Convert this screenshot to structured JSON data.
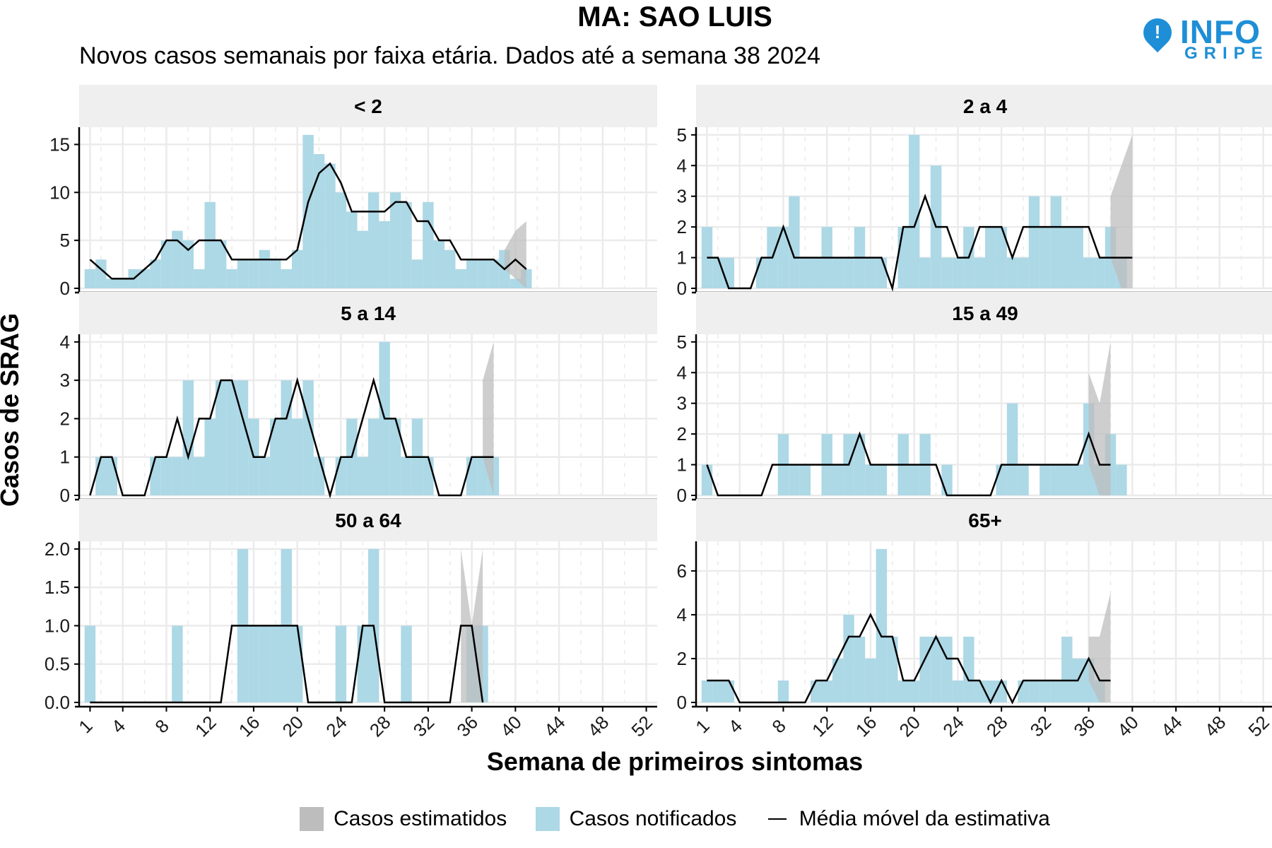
{
  "title": "MA: SAO LUIS",
  "subtitle": "Novos casos semanais por faixa etária. Dados até a semana 38 2024",
  "logo": {
    "pin_mark": "!",
    "word1": "INFO",
    "word2": "GRIPE"
  },
  "colors": {
    "notified": "#add8e6",
    "estimated": "#bdbdbd",
    "line": "#000000",
    "strip": "#efefef",
    "grid": "#ebebeb"
  },
  "chart_data": {
    "type": "bar",
    "xlabel": "Semana de primeiros sintomas",
    "ylabel": "Casos de SRAG",
    "x_ticks": [
      1,
      4,
      8,
      12,
      16,
      20,
      24,
      28,
      32,
      36,
      40,
      44,
      48,
      52
    ],
    "xlim": [
      0,
      53
    ],
    "legend": {
      "position": "bottom",
      "items": [
        "Casos estimatidos",
        "Casos notificados",
        "Média móvel da estimativa"
      ]
    },
    "panels": [
      {
        "name": "< 2",
        "ylim": [
          0,
          16.8
        ],
        "y_ticks": [
          0,
          5,
          10,
          15
        ],
        "notified": [
          2,
          3,
          1,
          1,
          2,
          2,
          3,
          5,
          6,
          5,
          2,
          9,
          5,
          2,
          3,
          3,
          4,
          3,
          2,
          4,
          16,
          14,
          13,
          10,
          8,
          6,
          10,
          7,
          10,
          9,
          3,
          9,
          5,
          4,
          2,
          3,
          3,
          3,
          4,
          1,
          2
        ],
        "moving_avg": [
          3,
          2,
          1,
          1,
          1,
          2,
          3,
          5,
          5,
          4,
          5,
          5,
          5,
          3,
          3,
          3,
          3,
          3,
          3,
          4,
          9,
          12,
          13,
          11,
          8,
          8,
          8,
          8,
          9,
          9,
          7,
          7,
          5,
          5,
          3,
          3,
          3,
          3,
          2,
          3,
          2
        ],
        "estimate_band": [
          [
            2,
            4
          ],
          [
            1,
            6
          ],
          [
            0,
            7
          ]
        ]
      },
      {
        "name": "2 a 4",
        "ylim": [
          0,
          5.25
        ],
        "y_ticks": [
          0,
          1,
          2,
          3,
          4,
          5
        ],
        "notified": [
          2,
          1,
          1,
          0,
          0,
          1,
          2,
          2,
          3,
          1,
          1,
          2,
          1,
          1,
          2,
          1,
          1,
          0,
          2,
          5,
          1,
          4,
          1,
          1,
          2,
          1,
          2,
          2,
          1,
          1,
          3,
          2,
          3,
          2,
          2,
          1,
          1,
          2,
          1
        ],
        "moving_avg": [
          1,
          1,
          0,
          0,
          0,
          1,
          1,
          2,
          1,
          1,
          1,
          1,
          1,
          1,
          1,
          1,
          1,
          0,
          2,
          2,
          3,
          2,
          2,
          1,
          1,
          2,
          2,
          2,
          1,
          2,
          2,
          2,
          2,
          2,
          2,
          2,
          1,
          1,
          1,
          1
        ],
        "estimate_band": [
          [
            1,
            3
          ],
          [
            0,
            4
          ],
          [
            0,
            5
          ]
        ]
      },
      {
        "name": "5 a 14",
        "ylim": [
          0,
          4.2
        ],
        "y_ticks": [
          0,
          1,
          2,
          3,
          4
        ],
        "notified": [
          0,
          1,
          1,
          0,
          0,
          0,
          1,
          1,
          1,
          3,
          1,
          2,
          3,
          3,
          3,
          2,
          1,
          2,
          3,
          2,
          3,
          1,
          0,
          1,
          2,
          1,
          2,
          4,
          2,
          1,
          2,
          1,
          0,
          0,
          0,
          1,
          1,
          1
        ],
        "moving_avg": [
          0,
          1,
          1,
          0,
          0,
          0,
          1,
          1,
          2,
          1,
          2,
          2,
          3,
          3,
          2,
          1,
          1,
          2,
          2,
          3,
          2,
          1,
          0,
          1,
          1,
          2,
          3,
          2,
          2,
          1,
          1,
          1,
          0,
          0,
          0,
          1,
          1,
          1
        ],
        "estimate_band": [
          [
            1,
            3
          ],
          [
            0,
            4
          ]
        ]
      },
      {
        "name": "15 a 49",
        "ylim": [
          0,
          5.25
        ],
        "y_ticks": [
          0,
          1,
          2,
          3,
          4,
          5
        ],
        "notified": [
          1,
          0,
          0,
          0,
          0,
          0,
          0,
          2,
          1,
          1,
          0,
          2,
          1,
          2,
          2,
          1,
          1,
          0,
          2,
          1,
          2,
          0,
          1,
          0,
          0,
          0,
          0,
          1,
          3,
          1,
          0,
          1,
          1,
          1,
          1,
          3,
          1,
          2,
          1
        ],
        "moving_avg": [
          1,
          0,
          0,
          0,
          0,
          0,
          1,
          1,
          1,
          1,
          1,
          1,
          1,
          1,
          2,
          1,
          1,
          1,
          1,
          1,
          1,
          1,
          0,
          0,
          0,
          0,
          0,
          1,
          1,
          1,
          1,
          1,
          1,
          1,
          1,
          2,
          1,
          1
        ],
        "estimate_band": [
          [
            1,
            4
          ],
          [
            0,
            3
          ],
          [
            0,
            5
          ]
        ]
      },
      {
        "name": "50 a 64",
        "ylim": [
          0,
          2.1
        ],
        "y_ticks": [
          0.0,
          0.5,
          1.0,
          1.5,
          2.0
        ],
        "y_tick_labels": [
          "0.0",
          "0.5",
          "1.0",
          "1.5",
          "2.0"
        ],
        "notified": [
          1,
          0,
          0,
          0,
          0,
          0,
          0,
          0,
          1,
          0,
          0,
          0,
          0,
          0,
          2,
          1,
          1,
          1,
          2,
          1,
          0,
          0,
          0,
          1,
          0,
          1,
          2,
          0,
          0,
          1,
          0,
          0,
          0,
          0,
          0,
          1,
          1
        ],
        "moving_avg": [
          0,
          0,
          0,
          0,
          0,
          0,
          0,
          0,
          0,
          0,
          0,
          0,
          0,
          1,
          1,
          1,
          1,
          1,
          1,
          1,
          0,
          0,
          0,
          0,
          0,
          1,
          1,
          0,
          0,
          0,
          0,
          0,
          0,
          0,
          1,
          1,
          0
        ],
        "estimate_band": [
          [
            0,
            2
          ],
          [
            0,
            1
          ],
          [
            0,
            2
          ]
        ]
      },
      {
        "name": "65+",
        "ylim": [
          0,
          7.35
        ],
        "y_ticks": [
          0,
          2,
          4,
          6
        ],
        "notified": [
          1,
          1,
          1,
          0,
          0,
          0,
          0,
          1,
          0,
          0,
          1,
          1,
          2,
          4,
          3,
          2,
          7,
          3,
          1,
          1,
          3,
          3,
          3,
          1,
          3,
          1,
          1,
          1,
          0,
          1,
          1,
          1,
          1,
          3,
          2,
          2,
          1
        ],
        "moving_avg": [
          1,
          1,
          1,
          0,
          0,
          0,
          0,
          0,
          0,
          0,
          1,
          1,
          2,
          3,
          3,
          4,
          3,
          3,
          1,
          1,
          2,
          3,
          2,
          2,
          1,
          1,
          0,
          1,
          0,
          1,
          1,
          1,
          1,
          1,
          1,
          2,
          1,
          1
        ],
        "estimate_band": [
          [
            1,
            3
          ],
          [
            0,
            3
          ],
          [
            0,
            5
          ]
        ]
      }
    ]
  }
}
